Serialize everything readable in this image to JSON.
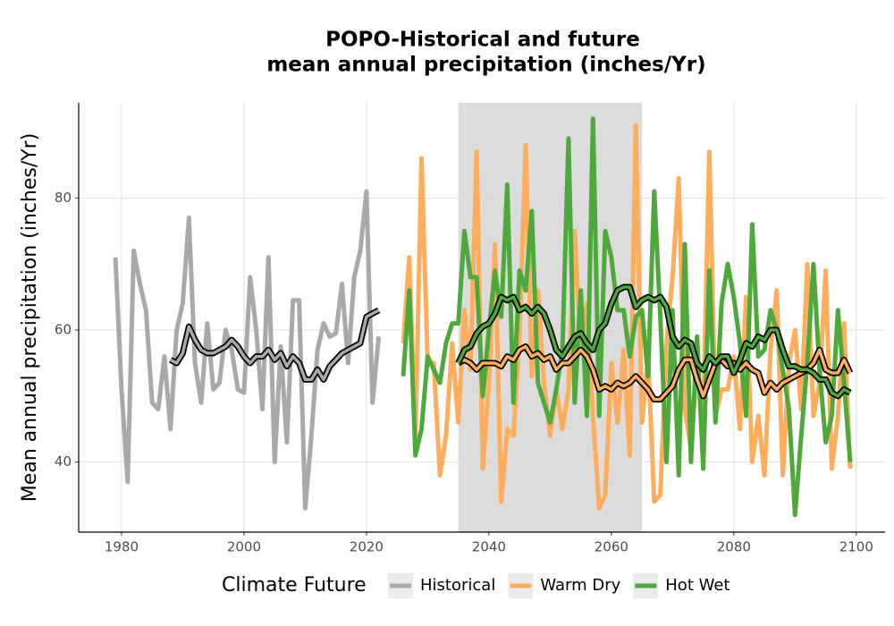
{
  "chart_data": {
    "type": "line",
    "title": [
      "POPO-Historical and future",
      "mean annual precipitation (inches/Yr)"
    ],
    "y_label": "Mean annual precipitation (inches/Yr)",
    "legend_title": "Climate Future",
    "xlim": [
      1973,
      2104.7
    ],
    "xticks": [
      1980,
      2000,
      2020,
      2040,
      2060,
      2080,
      2100
    ],
    "ylim": [
      29.4,
      94.4
    ],
    "yticks": [
      40,
      60,
      80
    ],
    "grid": true,
    "shade": [
      2035,
      2065
    ],
    "series": [
      {
        "name": "Historical",
        "color": "#a9a9a9",
        "x": [
          1979,
          1980,
          1981,
          1982,
          1983,
          1984,
          1985,
          1986,
          1987,
          1988,
          1989,
          1990,
          1991,
          1992,
          1993,
          1994,
          1995,
          1996,
          1997,
          1998,
          1999,
          2000,
          2001,
          2002,
          2003,
          2004,
          2005,
          2006,
          2007,
          2008,
          2009,
          2010,
          2011,
          2012,
          2013,
          2014,
          2015,
          2016,
          2017,
          2018,
          2019,
          2020,
          2021,
          2022
        ],
        "values": [
          71,
          51,
          37,
          72,
          67,
          63,
          49,
          48,
          56,
          45,
          60,
          64,
          77,
          55,
          49,
          61,
          51,
          52,
          60,
          57,
          51,
          50.5,
          68,
          60,
          48,
          71,
          40,
          57.5,
          43,
          64.5,
          64.5,
          33,
          44,
          57,
          61,
          59,
          59.5,
          67,
          55,
          68,
          72,
          81,
          49,
          59
        ],
        "smooth": {
          "x": [
            1988,
            1989,
            1990,
            1991,
            1992,
            1993,
            1994,
            1995,
            1996,
            1997,
            1998,
            1999,
            2000,
            2001,
            2002,
            2003,
            2004,
            2005,
            2006,
            2007,
            2008,
            2009,
            2010,
            2011,
            2012,
            2013,
            2014,
            2015,
            2016,
            2017,
            2018,
            2019,
            2020,
            2021,
            2022
          ],
          "values": [
            55.5,
            55,
            56.5,
            60.5,
            58.5,
            57,
            56.5,
            56.5,
            57,
            57.5,
            58.5,
            57.5,
            56,
            55,
            56,
            56,
            57,
            55.5,
            56.5,
            54.5,
            56,
            55,
            52.5,
            52.5,
            54,
            52.5,
            54.5,
            55.5,
            56.5,
            57,
            57.5,
            58,
            62,
            62.5,
            63
          ]
        }
      },
      {
        "name": "Warm Dry",
        "color": "#fdad5c",
        "x": [
          2026,
          2027,
          2028,
          2029,
          2030,
          2031,
          2032,
          2033,
          2034,
          2035,
          2036,
          2037,
          2038,
          2039,
          2040,
          2041,
          2042,
          2043,
          2044,
          2045,
          2046,
          2047,
          2048,
          2049,
          2050,
          2051,
          2052,
          2053,
          2054,
          2055,
          2056,
          2057,
          2058,
          2059,
          2060,
          2061,
          2062,
          2063,
          2064,
          2065,
          2066,
          2067,
          2068,
          2069,
          2070,
          2071,
          2072,
          2073,
          2074,
          2075,
          2076,
          2077,
          2078,
          2079,
          2080,
          2081,
          2082,
          2083,
          2084,
          2085,
          2086,
          2087,
          2088,
          2089,
          2090,
          2091,
          2092,
          2093,
          2094,
          2095,
          2096,
          2097,
          2098,
          2099
        ],
        "values": [
          58,
          71,
          44,
          86,
          55,
          55,
          38,
          44,
          58,
          46,
          63,
          54,
          87,
          39,
          52,
          73,
          34,
          45,
          44,
          59,
          88,
          53,
          66,
          52,
          44,
          51,
          45,
          51,
          75,
          57,
          64,
          47,
          33,
          35,
          55,
          46,
          57,
          41,
          91,
          46,
          56,
          34,
          35,
          58,
          68,
          83,
          48,
          42,
          55,
          47,
          87,
          47,
          51,
          51,
          56,
          45,
          65,
          40,
          47,
          38,
          57,
          66,
          38,
          55,
          60,
          48,
          70,
          47,
          52,
          69,
          39,
          47,
          61,
          39
        ],
        "smooth": {
          "x": [
            2035,
            2036,
            2037,
            2038,
            2039,
            2040,
            2041,
            2042,
            2043,
            2044,
            2045,
            2046,
            2047,
            2048,
            2049,
            2050,
            2051,
            2052,
            2053,
            2054,
            2055,
            2056,
            2057,
            2058,
            2059,
            2060,
            2061,
            2062,
            2063,
            2064,
            2065,
            2066,
            2067,
            2068,
            2069,
            2070,
            2071,
            2072,
            2073,
            2074,
            2075,
            2076,
            2077,
            2078,
            2079,
            2080,
            2081,
            2082,
            2083,
            2084,
            2085,
            2086,
            2087,
            2088,
            2089,
            2090,
            2091,
            2092,
            2093,
            2094,
            2095,
            2096,
            2097,
            2098,
            2099
          ],
          "values": [
            55,
            55.5,
            55,
            54,
            55,
            55,
            55,
            54.5,
            56,
            55.5,
            57,
            57.5,
            56,
            56.5,
            55.5,
            56,
            54,
            55,
            55,
            56,
            57,
            56,
            54,
            51,
            51.5,
            51,
            52,
            51.5,
            52,
            53,
            52,
            51,
            49.5,
            49.5,
            50.5,
            51.5,
            54,
            55.5,
            55.5,
            52.5,
            50,
            52.5,
            55,
            55.5,
            54.5,
            55,
            54,
            55,
            54,
            53.5,
            50.5,
            52,
            51,
            52,
            52.5,
            53,
            53.5,
            54,
            55,
            57,
            54,
            53.5,
            53.5,
            55.5,
            53.5
          ]
        }
      },
      {
        "name": "Hot Wet",
        "color": "#4ea83c",
        "x": [
          2026,
          2027,
          2028,
          2029,
          2030,
          2031,
          2032,
          2033,
          2034,
          2035,
          2036,
          2037,
          2038,
          2039,
          2040,
          2041,
          2042,
          2043,
          2044,
          2045,
          2046,
          2047,
          2048,
          2049,
          2050,
          2051,
          2052,
          2053,
          2054,
          2055,
          2056,
          2057,
          2058,
          2059,
          2060,
          2061,
          2062,
          2063,
          2064,
          2065,
          2066,
          2067,
          2068,
          2069,
          2070,
          2071,
          2072,
          2073,
          2074,
          2075,
          2076,
          2077,
          2078,
          2079,
          2080,
          2081,
          2082,
          2083,
          2084,
          2085,
          2086,
          2087,
          2088,
          2089,
          2090,
          2091,
          2092,
          2093,
          2094,
          2095,
          2096,
          2097,
          2098,
          2099
        ],
        "values": [
          53,
          66,
          41,
          45,
          56,
          54,
          52,
          58,
          61,
          61,
          75,
          68,
          68,
          50,
          60,
          69,
          62,
          82,
          49,
          69,
          66,
          78,
          52,
          49,
          46,
          51,
          57,
          89,
          49,
          66,
          47,
          92,
          47,
          75,
          71,
          63,
          63,
          56,
          62,
          63,
          53,
          81,
          62,
          40,
          63,
          38,
          73,
          40,
          59,
          39,
          69,
          46,
          64,
          70,
          65,
          58,
          47,
          76,
          56,
          57,
          63,
          60,
          54,
          48,
          32,
          44,
          55,
          70,
          54,
          43,
          47,
          63,
          52,
          40
        ],
        "smooth": {
          "x": [
            2035,
            2036,
            2037,
            2038,
            2039,
            2040,
            2041,
            2042,
            2043,
            2044,
            2045,
            2046,
            2047,
            2048,
            2049,
            2050,
            2051,
            2052,
            2053,
            2054,
            2055,
            2056,
            2057,
            2058,
            2059,
            2060,
            2061,
            2062,
            2063,
            2064,
            2065,
            2066,
            2067,
            2068,
            2069,
            2070,
            2071,
            2072,
            2073,
            2074,
            2075,
            2076,
            2077,
            2078,
            2079,
            2080,
            2081,
            2082,
            2083,
            2084,
            2085,
            2086,
            2087,
            2088,
            2089,
            2090,
            2091,
            2092,
            2093,
            2094,
            2095,
            2096,
            2097,
            2098,
            2099
          ],
          "values": [
            55,
            57,
            57.5,
            59.5,
            60.5,
            61,
            62.5,
            65,
            64.5,
            65,
            63,
            63.5,
            62.5,
            63.5,
            62.5,
            60,
            57,
            56,
            57.5,
            59,
            59.5,
            58,
            57,
            60,
            61,
            64,
            66,
            66.5,
            66.5,
            63.5,
            64.5,
            65,
            64.5,
            65,
            63.5,
            59,
            57.5,
            58.5,
            58,
            55,
            54,
            56,
            55,
            56,
            56,
            53.5,
            55.5,
            58,
            57.5,
            59,
            58.5,
            60,
            60,
            57,
            54.5,
            54.5,
            54,
            54,
            53.5,
            52.5,
            52.5,
            50.5,
            50,
            51,
            50.5
          ]
        }
      }
    ]
  }
}
